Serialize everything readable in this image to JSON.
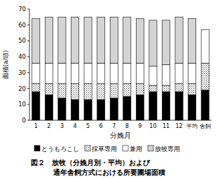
{
  "chart_data": {
    "type": "bar",
    "stacked": true,
    "title": "図２　放牧（分娩月別・平均）および\n通年舎飼方式における所要圃場面積",
    "x_label": "分娩月",
    "y_label": "面積(a/頭)",
    "categories": [
      "1",
      "2",
      "3",
      "4",
      "5",
      "6",
      "7",
      "8",
      "9",
      "10",
      "11",
      "12",
      "平均",
      "舎飼"
    ],
    "series": [
      {
        "name": "とうもろこし",
        "color": "#000000",
        "values": [
          18,
          16,
          14,
          13,
          13,
          13,
          14,
          15,
          16,
          18,
          18,
          18,
          16,
          19
        ]
      },
      {
        "name": "採草専用",
        "color": "#b8b8b8",
        "values": [
          5,
          7,
          9,
          10,
          10,
          10,
          9,
          8,
          7,
          4,
          4,
          5,
          7,
          17
        ]
      },
      {
        "name": "兼用",
        "color": "#ffffff",
        "values": [
          13,
          13,
          13,
          13,
          13,
          13,
          13,
          13,
          13,
          12,
          13,
          13,
          13,
          21
        ]
      },
      {
        "name": "放牧専用",
        "color": "#d4d4d4",
        "values": [
          28,
          29,
          29,
          29,
          29,
          29,
          29,
          29,
          28,
          29,
          28,
          29,
          28,
          0
        ]
      }
    ],
    "ylim": [
      0,
      70
    ],
    "yticks": [
      0,
      10,
      20,
      30,
      40,
      50,
      60,
      70
    ],
    "grid": false,
    "legend": "bottom"
  }
}
